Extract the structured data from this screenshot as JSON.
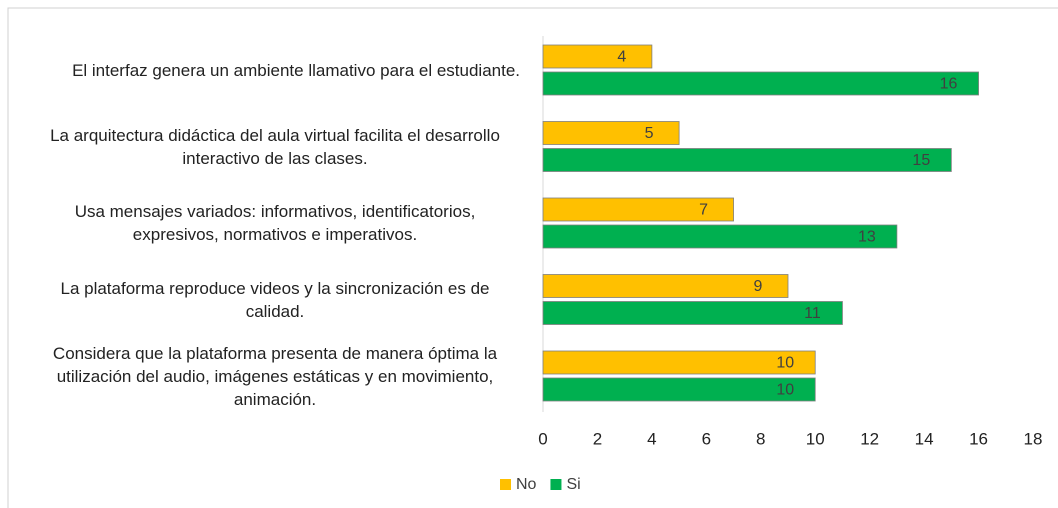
{
  "chart_data": {
    "type": "bar",
    "orientation": "horizontal",
    "categories": [
      "El interfaz genera un ambiente llamativo para el estudiante.",
      "La arquitectura didáctica del aula virtual facilita el desarrollo interactivo de las clases.",
      "Usa mensajes variados: informativos, identificatorios, expresivos, normativos e imperativos.",
      "La plataforma reproduce videos y la sincronización es de calidad.",
      "Considera que la plataforma presenta de manera óptima la utilización del audio, imágenes estáticas y en movimiento, animación."
    ],
    "series": [
      {
        "name": "No",
        "color": "#FFC000",
        "values": [
          4,
          5,
          7,
          9,
          10
        ]
      },
      {
        "name": "Si",
        "color": "#00B050",
        "values": [
          16,
          15,
          13,
          11,
          10
        ]
      }
    ],
    "xlim": [
      0,
      18
    ],
    "xticks": [
      0,
      2,
      4,
      6,
      8,
      10,
      12,
      14,
      16,
      18
    ],
    "grid": false,
    "legend": "bottom"
  }
}
